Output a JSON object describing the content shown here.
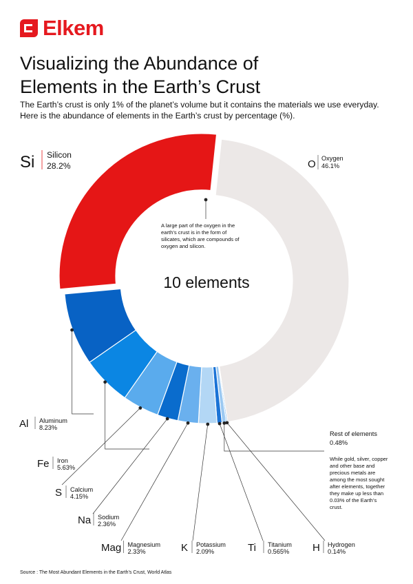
{
  "brand": {
    "name": "Elkem"
  },
  "title_line1": "Visualizing the Abundance of",
  "title_line2": "Elements in the Earth’s Crust",
  "subtitle": "The Earth’s crust is only 1% of the planet’s volume but it contains the materials we use everyday. Here is the abundance of elements in the Earth’s crust by percentage (%).",
  "center_label": "10 elements",
  "oxygen_note": [
    "A large part of the oxygen in the",
    "earth’s crust is in the form of",
    "silicates, which are compounds of",
    "oxygen and silicon."
  ],
  "rest_note": {
    "title": "Rest of elements",
    "value": "0.48%",
    "text": [
      "While gold, silver, copper",
      "and other base and",
      "precious metals are",
      "among the most sought",
      "after elements, together",
      "they make up less than",
      "0.03% of the Earth’s",
      "crust."
    ]
  },
  "source": "Source : The Most Abundant Elements in the Earth’s Crust, World Atlas",
  "chart_data": {
    "type": "pie",
    "unit": "%",
    "slices": [
      {
        "symbol": "O",
        "name": "Oxygen",
        "value": 46.1,
        "label": "46.1%",
        "color": "#ece8e7"
      },
      {
        "symbol": "H",
        "name": "Hydrogen",
        "value": 0.14,
        "label": "0.14%",
        "color": "#4ea0e8"
      },
      {
        "symbol": "",
        "name": "Rest of elements",
        "value": 0.48,
        "label": "0.48%",
        "color": "#9cc9f2"
      },
      {
        "symbol": "Ti",
        "name": "Titanium",
        "value": 0.565,
        "label": "0.565%",
        "color": "#1a73d6"
      },
      {
        "symbol": "K",
        "name": "Potassium",
        "value": 2.09,
        "label": "2.09%",
        "color": "#b3d7f5"
      },
      {
        "symbol": "Mag",
        "name": "Magnesium",
        "value": 2.33,
        "label": "2.33%",
        "color": "#6ab0ee"
      },
      {
        "symbol": "Na",
        "name": "Sodium",
        "value": 2.36,
        "label": "2.36%",
        "color": "#0a6ccd"
      },
      {
        "symbol": "S",
        "name": "Calcium",
        "value": 4.15,
        "label": "4.15%",
        "color": "#5aabed"
      },
      {
        "symbol": "Fe",
        "name": "Iron",
        "value": 5.63,
        "label": "5.63%",
        "color": "#0b86e3"
      },
      {
        "symbol": "Al",
        "name": "Aluminum",
        "value": 8.23,
        "label": "8.23%",
        "color": "#0862c4"
      },
      {
        "symbol": "Si",
        "name": "Silicon",
        "value": 28.2,
        "label": "28.2%",
        "color": "#e51616"
      }
    ]
  }
}
